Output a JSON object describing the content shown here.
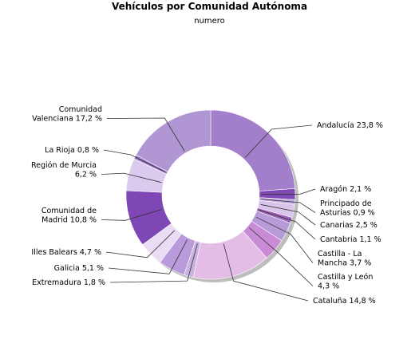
{
  "chart_data": {
    "type": "pie",
    "title": "Vehículos por Comunidad Autónoma",
    "subtitle": "numero",
    "unit": "%",
    "slices": [
      {
        "name": "Andalucía",
        "value": 23.8,
        "label_lines": [
          "Andalucía 23,8 %"
        ],
        "color": "#a27ecb"
      },
      {
        "name": "Aragón",
        "value": 2.1,
        "label_lines": [
          "Aragón 2,1 %"
        ],
        "color": "#7e49b5"
      },
      {
        "name": "Principado de Asturias",
        "value": 0.9,
        "label_lines": [
          "Principado de",
          "Asturias 0,9 %"
        ],
        "color": "#bfa5dd"
      },
      {
        "name": "Canarias",
        "value": 2.5,
        "label_lines": [
          "Canarias 2,5 %"
        ],
        "color": "#d9c4ec"
      },
      {
        "name": "Cantabria",
        "value": 1.1,
        "label_lines": [
          "Cantabria 1,1 %"
        ],
        "color": "#9b60b7"
      },
      {
        "name": "Castilla - La Mancha",
        "value": 3.7,
        "label_lines": [
          "Castilla - La",
          "Mancha 3,7 %"
        ],
        "color": "#b79bd9"
      },
      {
        "name": "Castilla y León",
        "value": 4.3,
        "label_lines": [
          "Castilla y León",
          "4,3 %"
        ],
        "color": "#c98ad6"
      },
      {
        "name": "Cataluña",
        "value": 14.8,
        "label_lines": [
          "Cataluña 14,8 %"
        ],
        "color": "#e4bde6"
      },
      {
        "name": "Extremadura",
        "value": 1.8,
        "label_lines": [
          "Extremadura 1,8 %"
        ],
        "color": "#c9b1e0"
      },
      {
        "name": "Galicia",
        "value": 5.1,
        "label_lines": [
          "Galicia 5,1 %"
        ],
        "color": "#b99adb"
      },
      {
        "name": "Illes Balears",
        "value": 4.7,
        "label_lines": [
          "Illes Balears 4,7 %"
        ],
        "color": "#e8ddf4"
      },
      {
        "name": "Comunidad de Madrid",
        "value": 10.8,
        "label_lines": [
          "Comunidad de",
          "Madrid 10,8 %"
        ],
        "color": "#7f46b6"
      },
      {
        "name": "Región de Murcia",
        "value": 6.2,
        "label_lines": [
          "Región de Murcia",
          "6,2 %"
        ],
        "color": "#dacbee"
      },
      {
        "name": "La Rioja",
        "value": 0.8,
        "label_lines": [
          "La Rioja 0,8 %"
        ],
        "color": "#9a72c4"
      },
      {
        "name": "Comunidad Valenciana",
        "value": 17.2,
        "label_lines": [
          "Comunidad",
          "Valenciana 17,2 %"
        ],
        "color": "#b196d4"
      }
    ],
    "start_position": "top, clockwise",
    "legend": "none",
    "grid": false
  }
}
